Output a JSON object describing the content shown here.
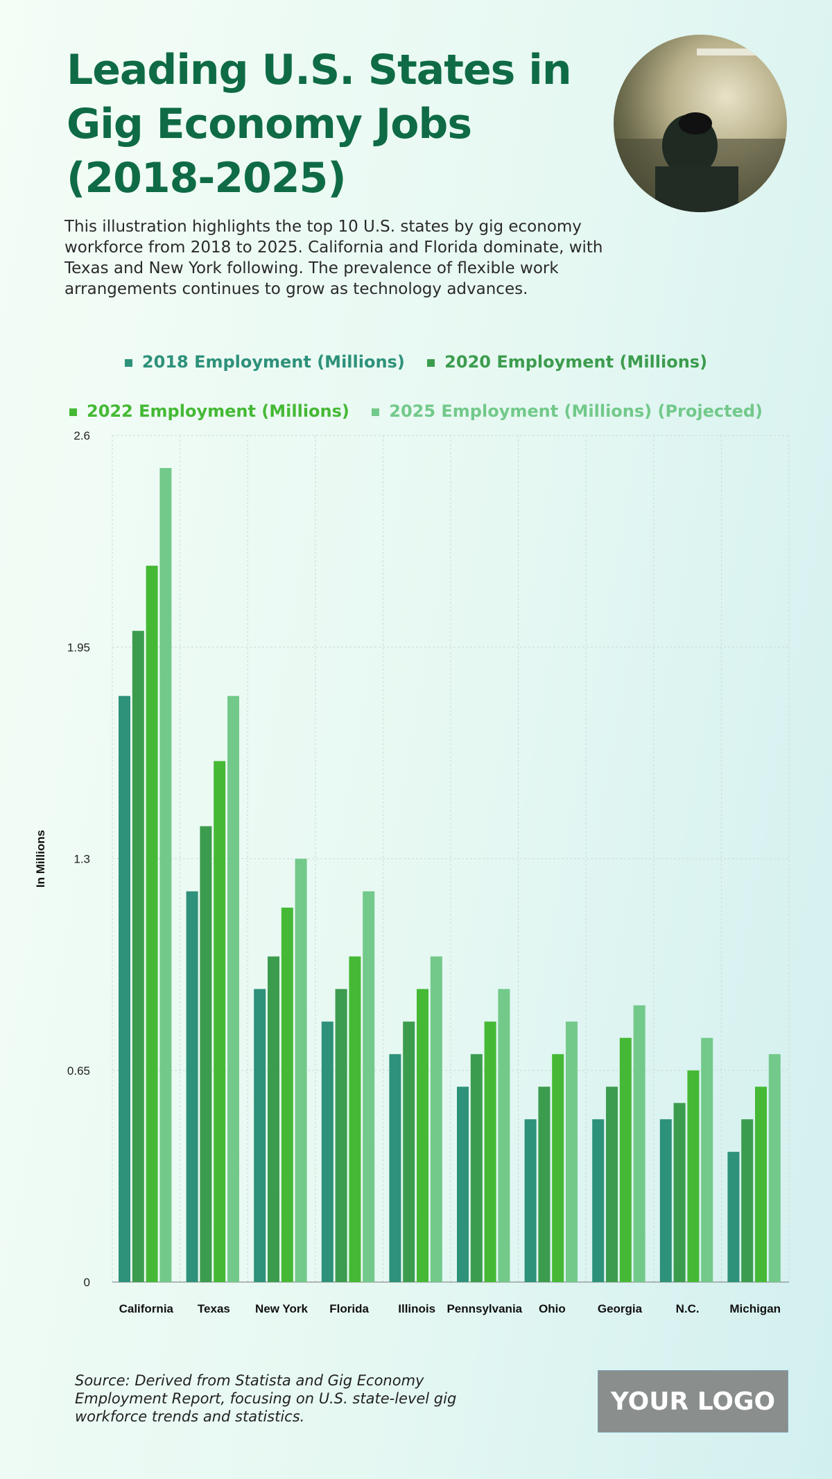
{
  "header": {
    "title": "Leading U.S. States in Gig Economy Jobs (2018-2025)",
    "description": "This illustration highlights the top 10 U.S. states by gig economy workforce from 2018 to 2025. California and Florida dominate, with Texas and New York following. The prevalence of flexible work arrangements continues to grow as technology advances."
  },
  "footer": {
    "source": "Source: Derived from Statista and Gig Economy Employment Report, focusing on U.S. state-level gig workforce trends and statistics.",
    "logo": "YOUR LOGO"
  },
  "chart_data": {
    "type": "bar",
    "ylabel": "In Millions",
    "xlabel": "",
    "ylim": [
      0,
      2.6
    ],
    "yticks": [
      "0",
      "0.65",
      "1.3",
      "1.95",
      "2.6"
    ],
    "grid": true,
    "legend_position": "top",
    "categories": [
      "California",
      "Texas",
      "New York",
      "Florida",
      "Illinois",
      "Pennsylvania",
      "Ohio",
      "Georgia",
      "N.C.",
      "Michigan"
    ],
    "series": [
      {
        "name": "2018 Employment (Millions)",
        "color": "#2e917a",
        "values": [
          1.8,
          1.2,
          0.9,
          0.8,
          0.7,
          0.6,
          0.5,
          0.5,
          0.5,
          0.4
        ]
      },
      {
        "name": "2020 Employment (Millions)",
        "color": "#3c9c4e",
        "values": [
          2.0,
          1.4,
          1.0,
          0.9,
          0.8,
          0.7,
          0.6,
          0.6,
          0.55,
          0.5
        ]
      },
      {
        "name": "2022 Employment (Millions)",
        "color": "#45b935",
        "values": [
          2.2,
          1.6,
          1.15,
          1.0,
          0.9,
          0.8,
          0.7,
          0.75,
          0.65,
          0.6
        ]
      },
      {
        "name": "2025 Employment (Millions) (Projected)",
        "color": "#72c98a",
        "values": [
          2.5,
          1.8,
          1.3,
          1.2,
          1.0,
          0.9,
          0.8,
          0.85,
          0.75,
          0.7
        ]
      }
    ]
  }
}
